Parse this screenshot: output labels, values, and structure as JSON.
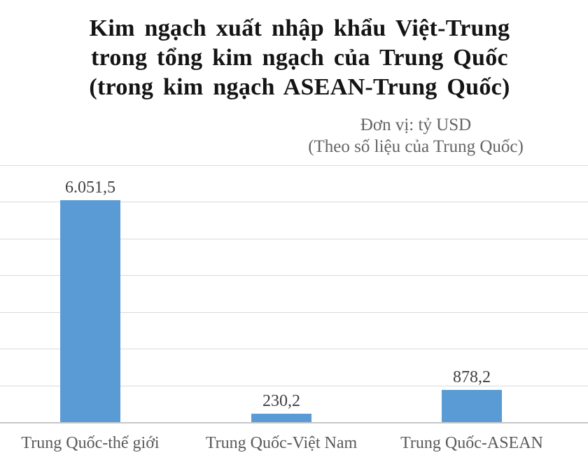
{
  "title": {
    "lines": [
      "Kim ngạch xuất nhập khẩu Việt-Trung",
      "trong tổng kim ngạch của Trung Quốc",
      "(trong kim ngạch ASEAN-Trung Quốc)"
    ]
  },
  "subtitle": {
    "lines": [
      "Đơn vị: tỷ USD",
      "(Theo số liệu của Trung Quốc)"
    ]
  },
  "chart_data": {
    "type": "bar",
    "title": "Kim ngạch xuất nhập khẩu Việt-Trung trong tổng kim ngạch của Trung Quốc (trong kim ngạch ASEAN-Trung Quốc)",
    "unit_note": "Đơn vị: tỷ USD (Theo số liệu của Trung Quốc)",
    "categories": [
      "Trung Quốc-thế giới",
      "Trung Quốc-Việt Nam",
      "Trung Quốc-ASEAN"
    ],
    "values": [
      6051.5,
      230.2,
      878.2
    ],
    "value_labels": [
      "6.051,5",
      "230,2",
      "878,2"
    ],
    "xlabel": "",
    "ylabel": "",
    "ylim": [
      0,
      7000
    ],
    "grid_step": 1000,
    "grid": true,
    "legend": false,
    "y_tick_labels_visible": false
  },
  "colors": {
    "bar": "#5B9BD5",
    "grid": "#d9d9d9",
    "axis": "#c6c6c6",
    "title": "#141414",
    "subtitle": "#646464",
    "value_label": "#3f3f3f",
    "category_label": "#595959"
  }
}
